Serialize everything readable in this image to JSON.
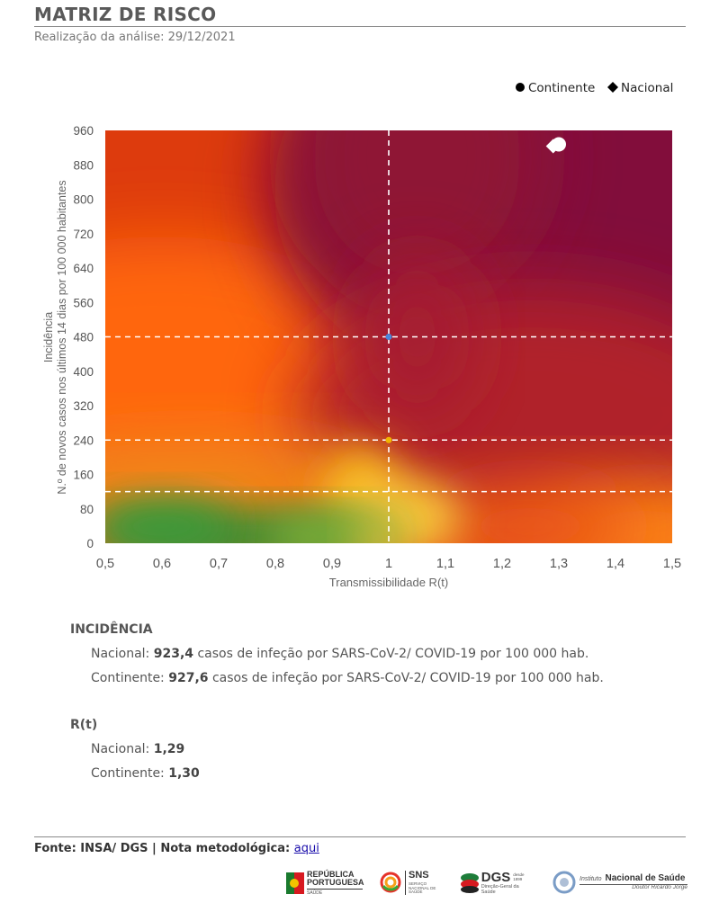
{
  "header": {
    "title": "MATRIZ DE RISCO",
    "subtitle": "Realização da análise: 29/12/2021"
  },
  "chart_data": {
    "type": "scatter",
    "xlabel": "Transmissibilidade R(t)",
    "ylabel_line1": "Incidência",
    "ylabel_line2": "N.º de novos casos nos últimos 14 dias por 100 000 habitantes",
    "xlim": [
      0.5,
      1.5
    ],
    "ylim": [
      0,
      960
    ],
    "x_ticks": [
      "0,5",
      "0,6",
      "0,7",
      "0,8",
      "0,9",
      "1",
      "1,1",
      "1,2",
      "1,3",
      "1,4",
      "1,5"
    ],
    "y_ticks": [
      "0",
      "80",
      "160",
      "240",
      "320",
      "400",
      "480",
      "560",
      "640",
      "720",
      "800",
      "880",
      "960"
    ],
    "legend_position": "top-right",
    "legend": [
      {
        "name": "Continente",
        "marker": "circle"
      },
      {
        "name": "Nacional",
        "marker": "diamond"
      }
    ],
    "reference_lines": {
      "vertical_x": [
        1
      ],
      "horizontal_y": [
        120,
        240,
        480
      ]
    },
    "reference_markers": [
      {
        "x": 1,
        "y": 480,
        "color": "#4a86d9"
      },
      {
        "x": 1,
        "y": 240,
        "color": "#f0b400"
      }
    ],
    "series": [
      {
        "name": "Continente",
        "marker": "circle",
        "color": "#ffffff",
        "points": [
          {
            "x": 1.3,
            "y": 927.6
          }
        ]
      },
      {
        "name": "Nacional",
        "marker": "diamond",
        "color": "#ffffff",
        "points": [
          {
            "x": 1.29,
            "y": 923.4
          }
        ]
      }
    ],
    "background": "risk gradient: green (low) → orange → dark magenta (high)"
  },
  "incidencia": {
    "heading": "INCIDÊNCIA",
    "nacional_label": "Nacional: ",
    "nacional_value": "923,4",
    "nacional_rest": " casos de infeção por SARS-CoV-2/ COVID-19 por 100 000 hab.",
    "continente_label": "Continente: ",
    "continente_value": "927,6",
    "continente_rest": " casos de infeção por SARS-CoV-2/ COVID-19 por 100 000 hab."
  },
  "rt": {
    "heading": "R(t)",
    "nacional_label": "Nacional: ",
    "nacional_value": "1,29",
    "continente_label": "Continente: ",
    "continente_value": "1,30"
  },
  "footer": {
    "source": "Fonte: INSA/ DGS  |  Nota metodológica: ",
    "link_text": "aqui"
  },
  "logos": {
    "republica_line1": "REPÚBLICA",
    "republica_line2": "PORTUGUESA",
    "republica_line3": "SAÚDE",
    "sns_main": "SNS",
    "sns_sub": "SERVIÇO NACIONAL DE SAÚDE",
    "dgs_main": "DGS",
    "dgs_year": "desde 1899",
    "dgs_sub": "Direção-Geral da Saúde",
    "insa_prefix": "Instituto",
    "insa_main": "Nacional de Saúde",
    "insa_sub": "Doutor Ricardo Jorge"
  }
}
